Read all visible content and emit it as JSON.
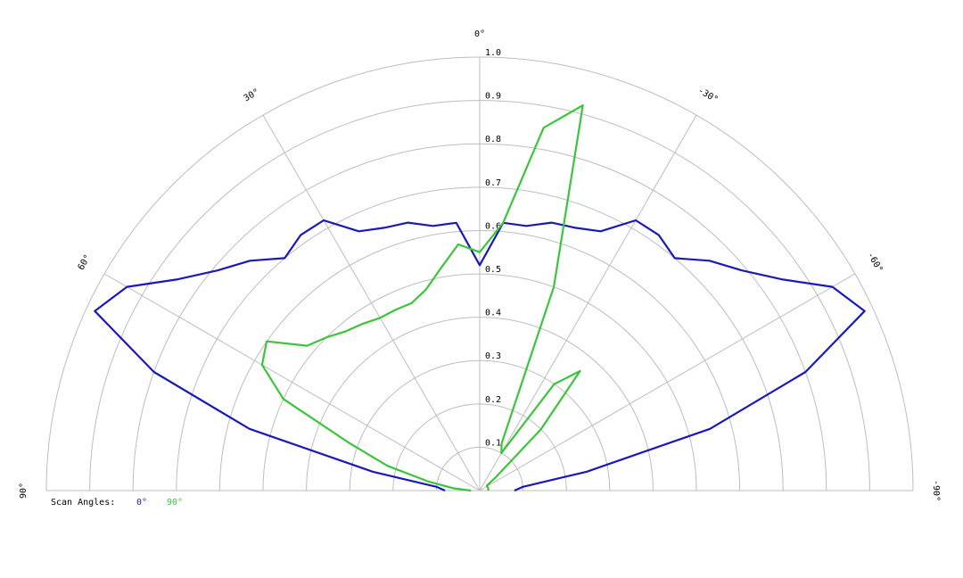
{
  "chart_data": {
    "type": "polar",
    "theta_ticks": [
      {
        "value": 90,
        "label": "90°"
      },
      {
        "value": 60,
        "label": "60°"
      },
      {
        "value": 30,
        "label": "30°"
      },
      {
        "value": 0,
        "label": "0°"
      },
      {
        "value": -30,
        "label": "-30°"
      },
      {
        "value": -60,
        "label": "-60°"
      },
      {
        "value": -90,
        "label": "-90°"
      }
    ],
    "rlim": [
      0,
      1
    ],
    "rticks": [
      0.1,
      0.2,
      0.3,
      0.4,
      0.5,
      0.6,
      0.7,
      0.8,
      0.9,
      {
        "value": 1,
        "label": "1.0"
      }
    ],
    "legend_title": "Scan Angles:",
    "x": [
      90,
      85,
      80,
      75,
      70,
      65,
      60,
      55,
      50,
      45,
      40,
      35,
      30,
      25,
      20,
      15,
      10,
      5,
      0,
      -5,
      -10,
      -15,
      -20,
      -25,
      -30,
      -35,
      -40,
      -45,
      -50,
      -55,
      -60,
      -65,
      -70,
      -75,
      -80,
      -85,
      -90
    ],
    "series": [
      {
        "name": "0°",
        "color": "#1a1ab8",
        "values": [
          0.08,
          0.1,
          0.25,
          0.55,
          0.8,
          0.98,
          0.94,
          0.85,
          0.79,
          0.75,
          0.7,
          0.72,
          0.72,
          0.66,
          0.645,
          0.64,
          0.62,
          0.62,
          0.52,
          0.62,
          0.62,
          0.64,
          0.645,
          0.66,
          0.72,
          0.72,
          0.7,
          0.75,
          0.79,
          0.85,
          0.94,
          0.98,
          0.8,
          0.55,
          0.25,
          0.1,
          0.08
        ]
      },
      {
        "name": "90°",
        "color": "#3cc43c",
        "values": [
          0.02,
          0.06,
          0.12,
          0.22,
          0.32,
          0.5,
          0.58,
          0.6,
          0.52,
          0.5,
          0.48,
          0.47,
          0.46,
          0.46,
          0.46,
          0.48,
          0.52,
          0.57,
          0.55,
          0.62,
          0.85,
          0.92,
          0.5,
          0.12,
          0.1,
          0.3,
          0.36,
          0.2,
          0.05,
          0.02,
          0.02,
          0.02,
          0.02,
          0.02,
          0.02,
          0.02,
          0.02
        ]
      }
    ]
  }
}
